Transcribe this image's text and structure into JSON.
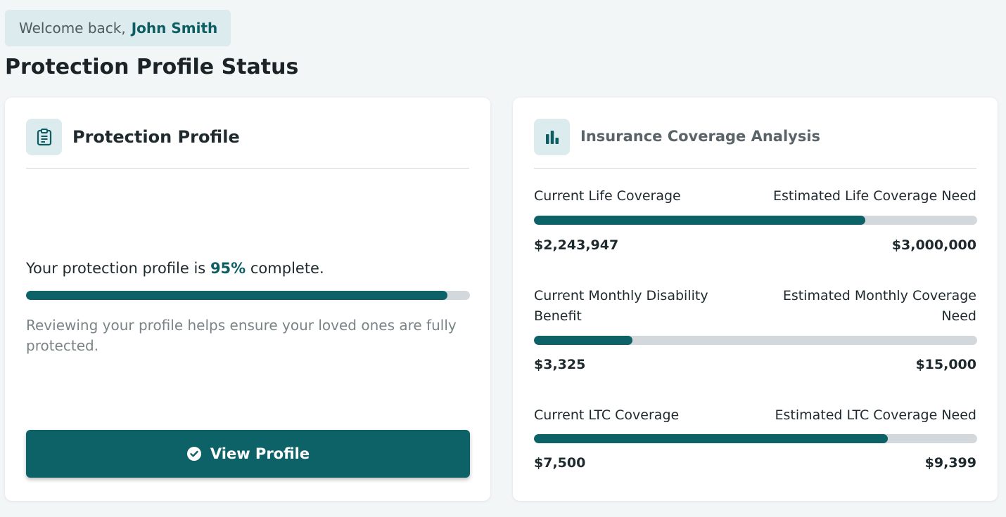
{
  "welcome": {
    "prefix": "Welcome back,",
    "name": "John Smith"
  },
  "page_title": "Protection Profile Status",
  "profile_card": {
    "title": "Protection Profile",
    "icon": "clipboard-icon",
    "status_prefix": "Your protection profile is",
    "percent_label": "95%",
    "status_suffix": "complete.",
    "progress_fraction": 0.95,
    "hint": "Reviewing your profile helps ensure your loved ones are fully protected.",
    "button_label": "View Profile",
    "button_icon": "check-circle-icon"
  },
  "coverage_card": {
    "title": "Insurance Coverage Analysis",
    "icon": "bar-chart-icon",
    "rows": [
      {
        "current_label": "Current Life Coverage",
        "need_label": "Estimated Life Coverage Need",
        "current_value": "$2,243,947",
        "need_value": "$3,000,000",
        "fraction": 0.748
      },
      {
        "current_label": "Current Monthly Disability Benefit",
        "need_label": "Estimated Monthly Coverage Need",
        "current_value": "$3,325",
        "need_value": "$15,000",
        "fraction": 0.222
      },
      {
        "current_label": "Current LTC Coverage",
        "need_label": "Estimated LTC Coverage Need",
        "current_value": "$7,500",
        "need_value": "$9,399",
        "fraction": 0.798
      }
    ]
  },
  "colors": {
    "accent": "#0c6266",
    "track": "#d3d8dc",
    "icon_bg": "#dcebed",
    "background": "#f2f6f7"
  }
}
